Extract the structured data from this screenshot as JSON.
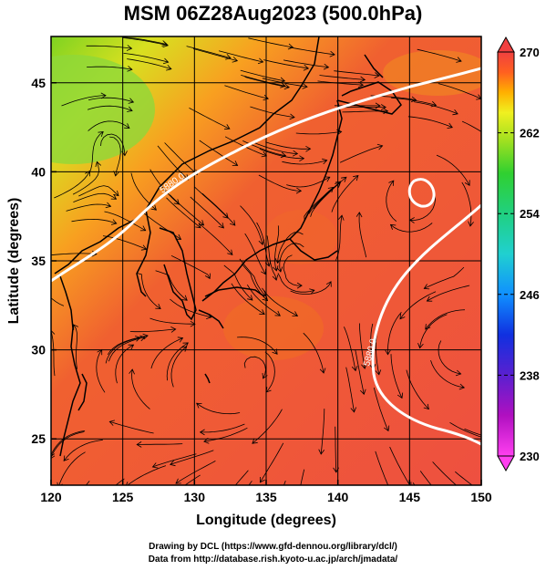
{
  "title": "MSM 06Z28Aug2023 (500.0hPa)",
  "axes": {
    "xlabel": "Longitude (degrees)",
    "ylabel": "Latitude  (degrees)",
    "xticks": [
      120,
      125,
      130,
      135,
      140,
      145,
      150
    ],
    "yticks": [
      25,
      30,
      35,
      40,
      45
    ],
    "xlim": [
      120,
      150
    ],
    "ylim": [
      22.4,
      47.6
    ]
  },
  "colorbar": {
    "ticks": [
      270,
      262,
      254,
      246,
      238,
      230
    ],
    "range": [
      230,
      270
    ],
    "colors": [
      "#ff3ff0",
      "#b010c0",
      "#5a20d0",
      "#1030e0",
      "#1090ff",
      "#20d0d0",
      "#20d080",
      "#30d030",
      "#a0e020",
      "#f0f020",
      "#ffb000",
      "#ff6020",
      "#f04040"
    ]
  },
  "contours": [
    {
      "label": "5880.0"
    },
    {
      "label": "5880.0"
    }
  ],
  "credits": {
    "line1": "Drawing by DCL (https://www.gfd-dennou.org/library/dcl/)",
    "line2": "Data from http://database.rish.kyoto-u.ac.jp/arch/jmadata/"
  }
}
